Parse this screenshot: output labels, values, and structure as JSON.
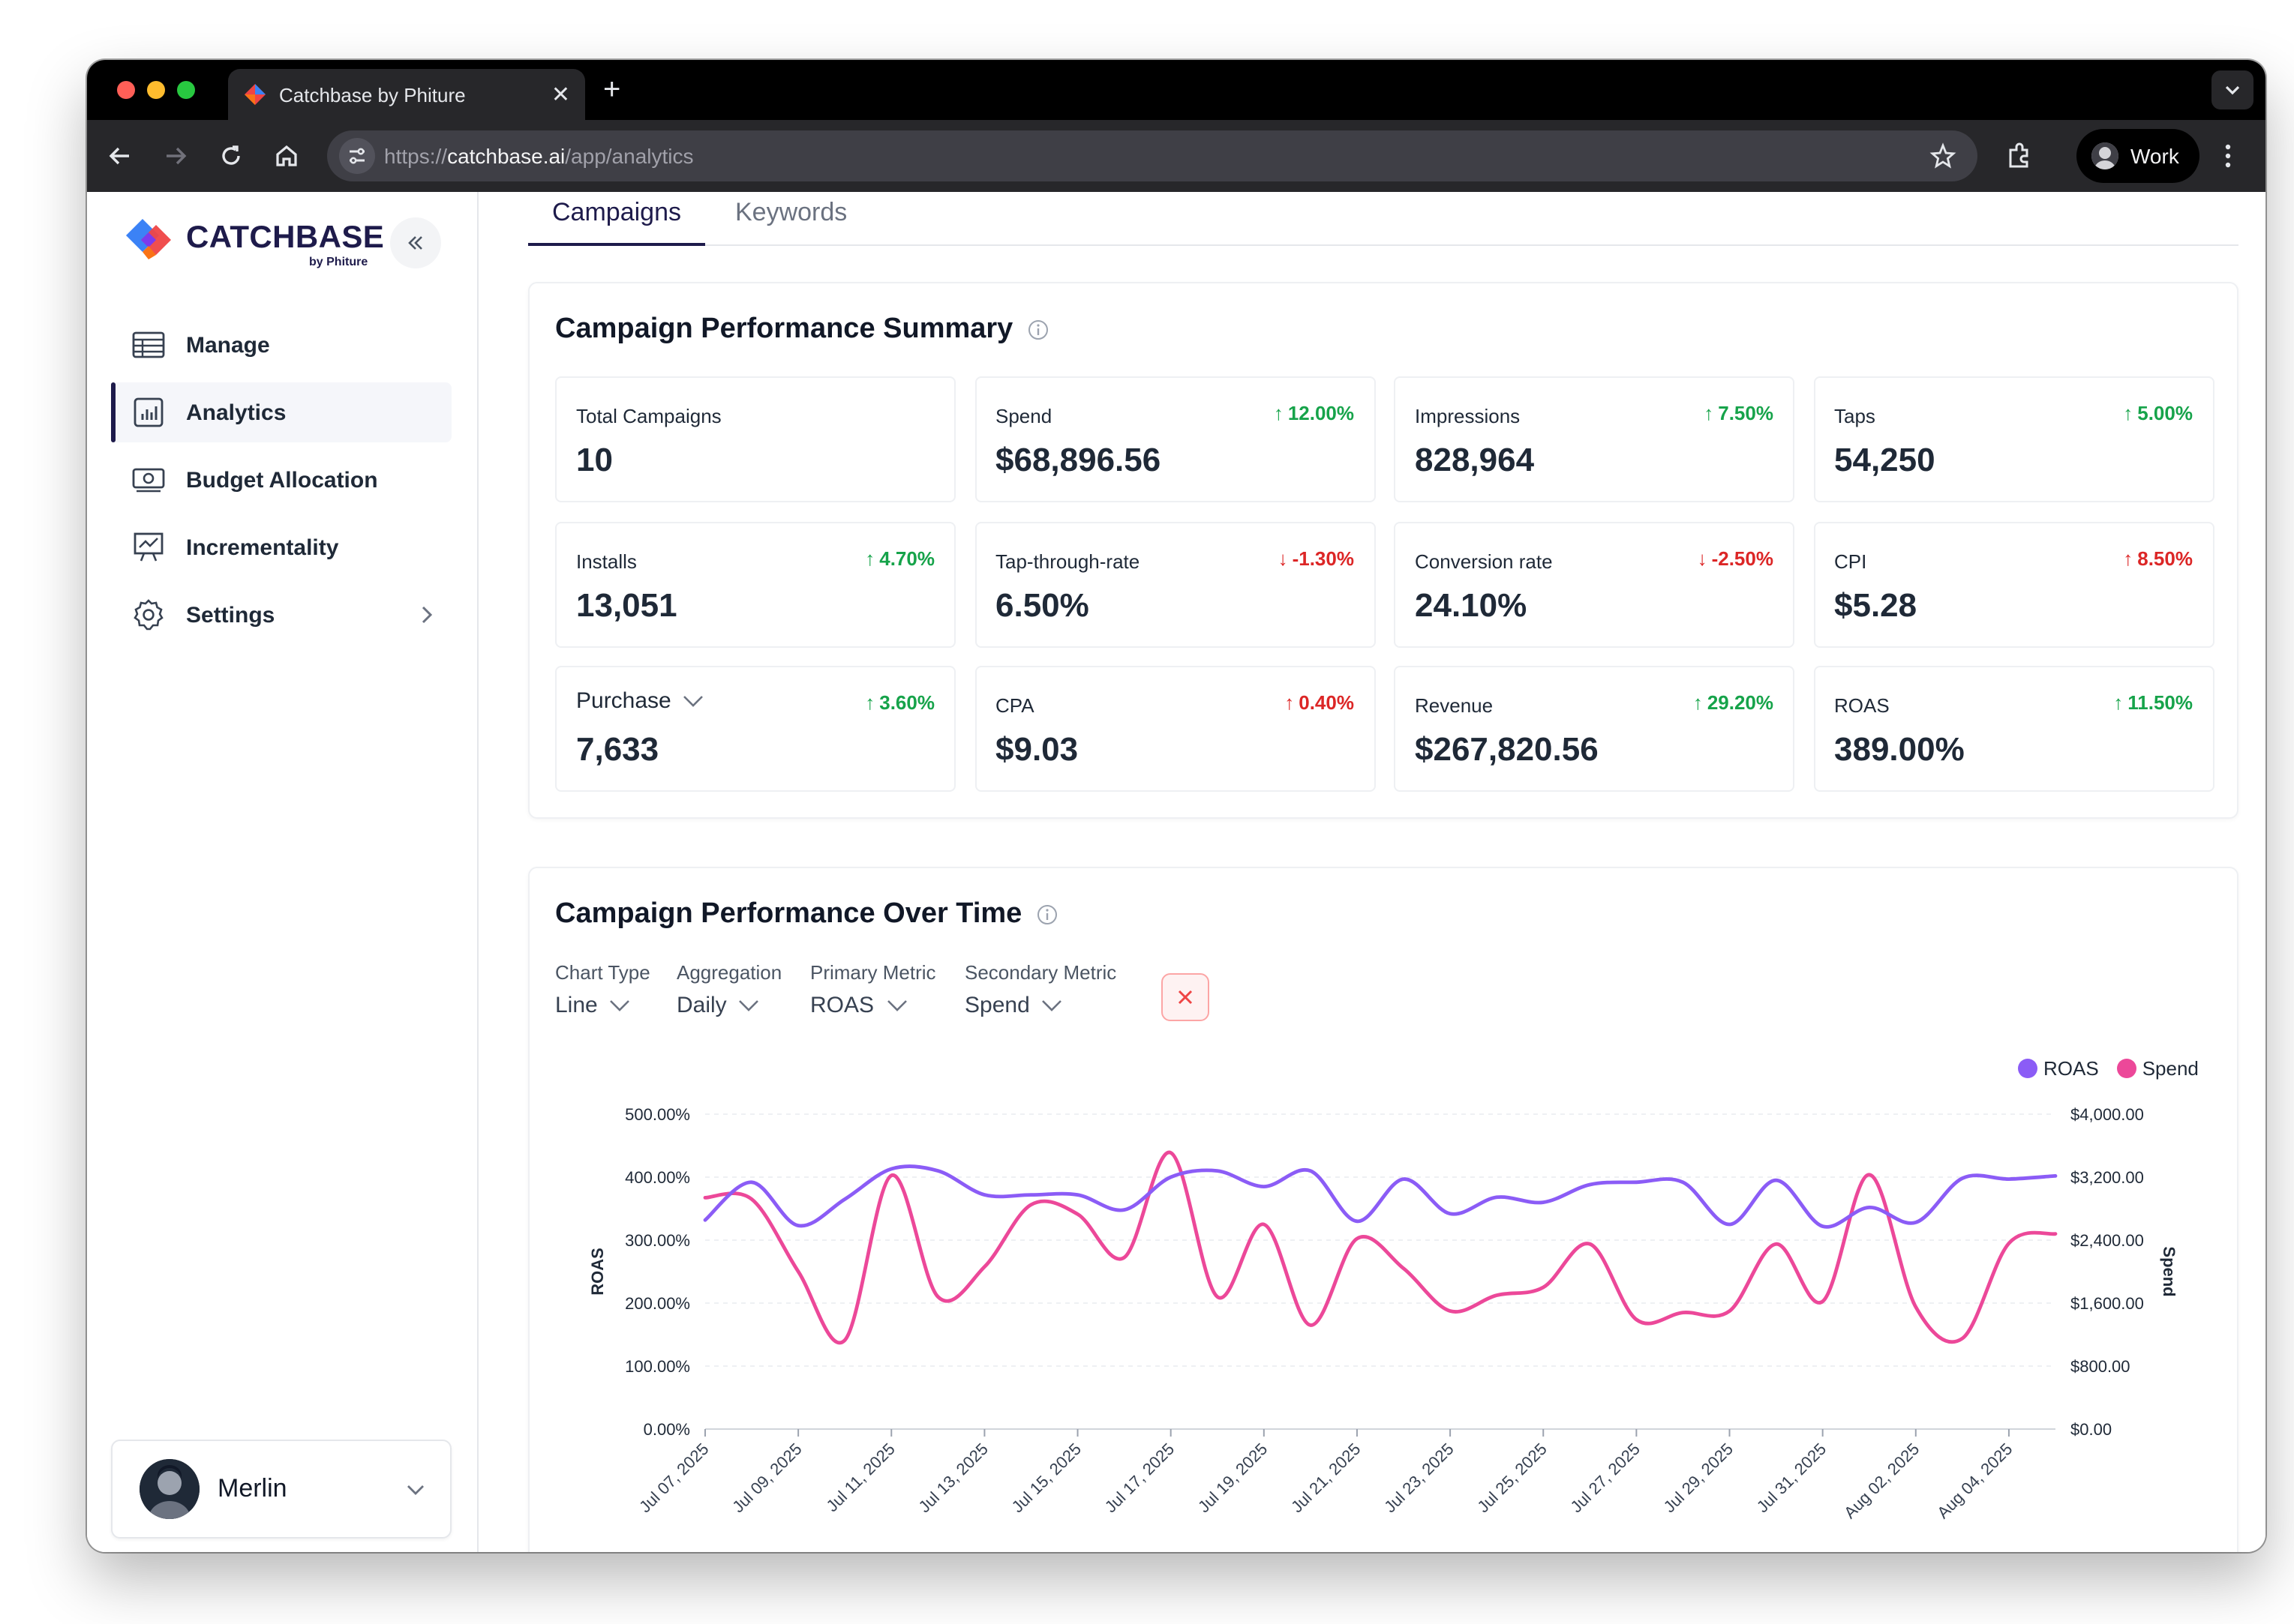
{
  "browser": {
    "tab_title": "Catchbase by Phiture",
    "url_scheme": "https://",
    "url_host": "catchbase.ai",
    "url_path": "/app/analytics",
    "profile_label": "Work"
  },
  "sidebar": {
    "logo_text": "CATCHBASE",
    "logo_sub": "by Phiture",
    "items": [
      {
        "label": "Manage",
        "icon": "table-icon"
      },
      {
        "label": "Analytics",
        "icon": "bar-chart-icon",
        "active": true
      },
      {
        "label": "Budget Allocation",
        "icon": "banknote-icon"
      },
      {
        "label": "Incrementality",
        "icon": "presentation-chart-icon"
      },
      {
        "label": "Settings",
        "icon": "gear-icon"
      }
    ],
    "user_name": "Merlin"
  },
  "tabs": {
    "campaigns": "Campaigns",
    "keywords": "Keywords"
  },
  "summary": {
    "title": "Campaign Performance Summary",
    "metrics": [
      {
        "label": "Total Campaigns",
        "value": "10",
        "delta": "",
        "dir": "none"
      },
      {
        "label": "Spend",
        "value": "$68,896.56",
        "delta": "12.00%",
        "dir": "up",
        "color": "#16a34a"
      },
      {
        "label": "Impressions",
        "value": "828,964",
        "delta": "7.50%",
        "dir": "up",
        "color": "#16a34a"
      },
      {
        "label": "Taps",
        "value": "54,250",
        "delta": "5.00%",
        "dir": "up",
        "color": "#16a34a"
      },
      {
        "label": "Installs",
        "value": "13,051",
        "delta": "4.70%",
        "dir": "up",
        "color": "#16a34a"
      },
      {
        "label": "Tap-through-rate",
        "value": "6.50%",
        "delta": "-1.30%",
        "dir": "down",
        "color": "#dc2626"
      },
      {
        "label": "Conversion rate",
        "value": "24.10%",
        "delta": "-2.50%",
        "dir": "down",
        "color": "#dc2626"
      },
      {
        "label": "CPI",
        "value": "$5.28",
        "delta": "8.50%",
        "dir": "up",
        "color": "#dc2626"
      },
      {
        "label": "Purchase",
        "value": "7,633",
        "delta": "3.60%",
        "dir": "up",
        "color": "#16a34a",
        "dropdown": true
      },
      {
        "label": "CPA",
        "value": "$9.03",
        "delta": "0.40%",
        "dir": "up",
        "color": "#dc2626"
      },
      {
        "label": "Revenue",
        "value": "$267,820.56",
        "delta": "29.20%",
        "dir": "up",
        "color": "#16a34a"
      },
      {
        "label": "ROAS",
        "value": "389.00%",
        "delta": "11.50%",
        "dir": "up",
        "color": "#16a34a"
      }
    ]
  },
  "over_time": {
    "title": "Campaign Performance Over Time",
    "controls": {
      "chart_type": {
        "label": "Chart Type",
        "value": "Line"
      },
      "aggregation": {
        "label": "Aggregation",
        "value": "Daily"
      },
      "primary": {
        "label": "Primary Metric",
        "value": "ROAS"
      },
      "secondary": {
        "label": "Secondary Metric",
        "value": "Spend"
      }
    }
  },
  "chart_data": {
    "type": "line",
    "title": "",
    "xlabel": "",
    "ylabel": "ROAS",
    "y2label": "Spend",
    "ylim": [
      0,
      500
    ],
    "y2lim": [
      0,
      4000
    ],
    "y_ticks": [
      "0.00%",
      "100.00%",
      "200.00%",
      "300.00%",
      "400.00%",
      "500.00%"
    ],
    "y2_ticks": [
      "$0.00",
      "$800.00",
      "$1,600.00",
      "$2,400.00",
      "$3,200.00",
      "$4,000.00"
    ],
    "x_ticks": [
      "Jul 07, 2025",
      "Jul 09, 2025",
      "Jul 11, 2025",
      "Jul 13, 2025",
      "Jul 15, 2025",
      "Jul 17, 2025",
      "Jul 19, 2025",
      "Jul 21, 2025",
      "Jul 23, 2025",
      "Jul 25, 2025",
      "Jul 27, 2025",
      "Jul 29, 2025",
      "Jul 31, 2025",
      "Aug 02, 2025",
      "Aug 04, 2025"
    ],
    "x": [
      "Jul 07, 2025",
      "Jul 08, 2025",
      "Jul 09, 2025",
      "Jul 10, 2025",
      "Jul 11, 2025",
      "Jul 12, 2025",
      "Jul 13, 2025",
      "Jul 14, 2025",
      "Jul 15, 2025",
      "Jul 16, 2025",
      "Jul 17, 2025",
      "Jul 18, 2025",
      "Jul 19, 2025",
      "Jul 20, 2025",
      "Jul 21, 2025",
      "Jul 22, 2025",
      "Jul 23, 2025",
      "Jul 24, 2025",
      "Jul 25, 2025",
      "Jul 26, 2025",
      "Jul 27, 2025",
      "Jul 28, 2025",
      "Jul 29, 2025",
      "Jul 30, 2025",
      "Jul 31, 2025",
      "Aug 01, 2025",
      "Aug 02, 2025",
      "Aug 03, 2025",
      "Aug 04, 2025",
      "Aug 05, 2025"
    ],
    "legend_position": "top-right",
    "grid": true,
    "series": [
      {
        "name": "ROAS",
        "axis": "left",
        "color": "#8b5cf6",
        "values": [
          332,
          392,
          323,
          365,
          413,
          410,
          372,
          372,
          372,
          348,
          400,
          410,
          385,
          410,
          330,
          397,
          342,
          368,
          360,
          388,
          392,
          392,
          325,
          395,
          322,
          352,
          328,
          398,
          397,
          402
        ]
      },
      {
        "name": "Spend",
        "axis": "right",
        "color": "#ec4899",
        "values": [
          2940,
          2920,
          2000,
          1130,
          3220,
          1680,
          2060,
          2850,
          2730,
          2180,
          3510,
          1680,
          2600,
          1320,
          2420,
          2040,
          1500,
          1700,
          1800,
          2350,
          1390,
          1480,
          1500,
          2350,
          1620,
          3230,
          1550,
          1150,
          2360,
          2480
        ]
      }
    ]
  },
  "colors": {
    "accent": "#1e1b4b",
    "up": "#16a34a",
    "down": "#dc2626",
    "roas": "#8b5cf6",
    "spend": "#ec4899"
  }
}
